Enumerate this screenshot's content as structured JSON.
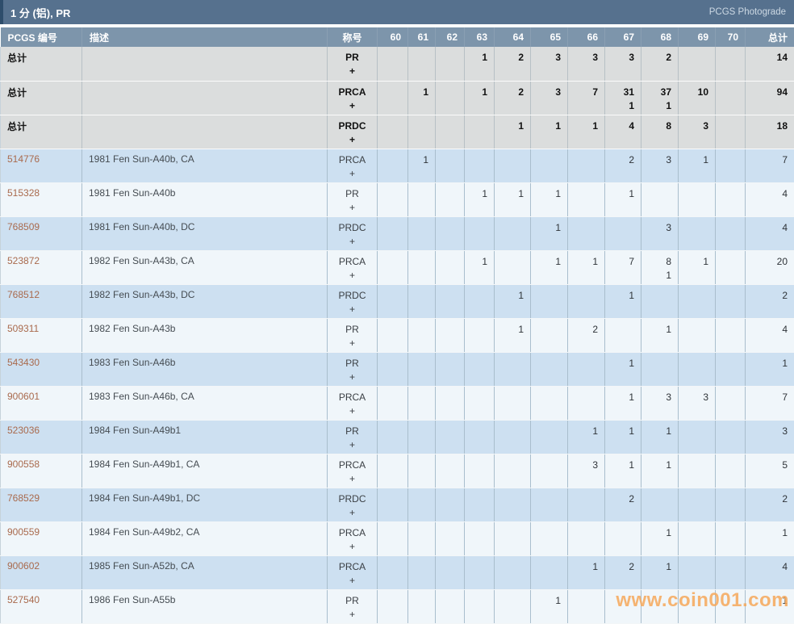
{
  "titlebar": {
    "title": "1 分 (铝), PR",
    "photograde_link": "PCGS Photograde"
  },
  "table": {
    "headers": {
      "pcgs": "PCGS 编号",
      "desc": "描述",
      "designation": "称号",
      "grades": [
        "60",
        "61",
        "62",
        "63",
        "64",
        "65",
        "66",
        "67",
        "68",
        "69",
        "70"
      ],
      "total": "总计"
    },
    "summary_label": "总计",
    "plus_symbol": "+",
    "summary_rows": [
      {
        "designation": "PR",
        "counts": [
          "",
          "",
          "",
          "1",
          "2",
          "3",
          "3",
          "3",
          "2",
          "",
          ""
        ],
        "plus_counts": [
          "",
          "",
          "",
          "",
          "",
          "",
          "",
          "",
          "",
          "",
          ""
        ],
        "total": "14",
        "plus_total": ""
      },
      {
        "designation": "PRCA",
        "counts": [
          "",
          "1",
          "",
          "1",
          "2",
          "3",
          "7",
          "31",
          "37",
          "10",
          ""
        ],
        "plus_counts": [
          "",
          "",
          "",
          "",
          "",
          "",
          "",
          "1",
          "1",
          "",
          ""
        ],
        "total": "94",
        "plus_total": ""
      },
      {
        "designation": "PRDC",
        "counts": [
          "",
          "",
          "",
          "",
          "1",
          "1",
          "1",
          "4",
          "8",
          "3",
          ""
        ],
        "plus_counts": [
          "",
          "",
          "",
          "",
          "",
          "",
          "",
          "",
          "",
          "",
          ""
        ],
        "total": "18",
        "plus_total": ""
      }
    ],
    "coin_rows": [
      {
        "pcgs_no": "514776",
        "desc": "1981 Fen Sun-A40b, CA",
        "designation": "PRCA",
        "counts": [
          "",
          "1",
          "",
          "",
          "",
          "",
          "",
          "2",
          "3",
          "1",
          ""
        ],
        "plus_counts": [
          "",
          "",
          "",
          "",
          "",
          "",
          "",
          "",
          "",
          "",
          ""
        ],
        "total": "7",
        "plus_total": ""
      },
      {
        "pcgs_no": "515328",
        "desc": "1981 Fen Sun-A40b",
        "designation": "PR",
        "counts": [
          "",
          "",
          "",
          "1",
          "1",
          "1",
          "",
          "1",
          "",
          "",
          ""
        ],
        "plus_counts": [
          "",
          "",
          "",
          "",
          "",
          "",
          "",
          "",
          "",
          "",
          ""
        ],
        "total": "4",
        "plus_total": ""
      },
      {
        "pcgs_no": "768509",
        "desc": "1981 Fen Sun-A40b, DC",
        "designation": "PRDC",
        "counts": [
          "",
          "",
          "",
          "",
          "",
          "1",
          "",
          "",
          "3",
          "",
          ""
        ],
        "plus_counts": [
          "",
          "",
          "",
          "",
          "",
          "",
          "",
          "",
          "",
          "",
          ""
        ],
        "total": "4",
        "plus_total": ""
      },
      {
        "pcgs_no": "523872",
        "desc": "1982 Fen Sun-A43b, CA",
        "designation": "PRCA",
        "counts": [
          "",
          "",
          "",
          "1",
          "",
          "1",
          "1",
          "7",
          "8",
          "1",
          ""
        ],
        "plus_counts": [
          "",
          "",
          "",
          "",
          "",
          "",
          "",
          "",
          "1",
          "",
          ""
        ],
        "total": "20",
        "plus_total": ""
      },
      {
        "pcgs_no": "768512",
        "desc": "1982 Fen Sun-A43b, DC",
        "designation": "PRDC",
        "counts": [
          "",
          "",
          "",
          "",
          "1",
          "",
          "",
          "1",
          "",
          "",
          ""
        ],
        "plus_counts": [
          "",
          "",
          "",
          "",
          "",
          "",
          "",
          "",
          "",
          "",
          ""
        ],
        "total": "2",
        "plus_total": ""
      },
      {
        "pcgs_no": "509311",
        "desc": "1982 Fen Sun-A43b",
        "designation": "PR",
        "counts": [
          "",
          "",
          "",
          "",
          "1",
          "",
          "2",
          "",
          "1",
          "",
          ""
        ],
        "plus_counts": [
          "",
          "",
          "",
          "",
          "",
          "",
          "",
          "",
          "",
          "",
          ""
        ],
        "total": "4",
        "plus_total": ""
      },
      {
        "pcgs_no": "543430",
        "desc": "1983 Fen Sun-A46b",
        "designation": "PR",
        "counts": [
          "",
          "",
          "",
          "",
          "",
          "",
          "",
          "1",
          "",
          "",
          ""
        ],
        "plus_counts": [
          "",
          "",
          "",
          "",
          "",
          "",
          "",
          "",
          "",
          "",
          ""
        ],
        "total": "1",
        "plus_total": ""
      },
      {
        "pcgs_no": "900601",
        "desc": "1983 Fen Sun-A46b, CA",
        "designation": "PRCA",
        "counts": [
          "",
          "",
          "",
          "",
          "",
          "",
          "",
          "1",
          "3",
          "3",
          ""
        ],
        "plus_counts": [
          "",
          "",
          "",
          "",
          "",
          "",
          "",
          "",
          "",
          "",
          ""
        ],
        "total": "7",
        "plus_total": ""
      },
      {
        "pcgs_no": "523036",
        "desc": "1984 Fen Sun-A49b1",
        "designation": "PR",
        "counts": [
          "",
          "",
          "",
          "",
          "",
          "",
          "1",
          "1",
          "1",
          "",
          ""
        ],
        "plus_counts": [
          "",
          "",
          "",
          "",
          "",
          "",
          "",
          "",
          "",
          "",
          ""
        ],
        "total": "3",
        "plus_total": ""
      },
      {
        "pcgs_no": "900558",
        "desc": "1984 Fen Sun-A49b1, CA",
        "designation": "PRCA",
        "counts": [
          "",
          "",
          "",
          "",
          "",
          "",
          "3",
          "1",
          "1",
          "",
          ""
        ],
        "plus_counts": [
          "",
          "",
          "",
          "",
          "",
          "",
          "",
          "",
          "",
          "",
          ""
        ],
        "total": "5",
        "plus_total": ""
      },
      {
        "pcgs_no": "768529",
        "desc": "1984 Fen Sun-A49b1, DC",
        "designation": "PRDC",
        "counts": [
          "",
          "",
          "",
          "",
          "",
          "",
          "",
          "2",
          "",
          "",
          ""
        ],
        "plus_counts": [
          "",
          "",
          "",
          "",
          "",
          "",
          "",
          "",
          "",
          "",
          ""
        ],
        "total": "2",
        "plus_total": ""
      },
      {
        "pcgs_no": "900559",
        "desc": "1984 Fen Sun-A49b2, CA",
        "designation": "PRCA",
        "counts": [
          "",
          "",
          "",
          "",
          "",
          "",
          "",
          "",
          "1",
          "",
          ""
        ],
        "plus_counts": [
          "",
          "",
          "",
          "",
          "",
          "",
          "",
          "",
          "",
          "",
          ""
        ],
        "total": "1",
        "plus_total": ""
      },
      {
        "pcgs_no": "900602",
        "desc": "1985 Fen Sun-A52b, CA",
        "designation": "PRCA",
        "counts": [
          "",
          "",
          "",
          "",
          "",
          "",
          "1",
          "2",
          "1",
          "",
          ""
        ],
        "plus_counts": [
          "",
          "",
          "",
          "",
          "",
          "",
          "",
          "",
          "",
          "",
          ""
        ],
        "total": "4",
        "plus_total": ""
      },
      {
        "pcgs_no": "527540",
        "desc": "1986 Fen Sun-A55b",
        "designation": "PR",
        "counts": [
          "",
          "",
          "",
          "",
          "",
          "1",
          "",
          "",
          "",
          "",
          ""
        ],
        "plus_counts": [
          "",
          "",
          "",
          "",
          "",
          "",
          "",
          "",
          "",
          "",
          ""
        ],
        "total": "1",
        "plus_total": ""
      }
    ]
  },
  "watermark": "www.coin001.com",
  "colors": {
    "titlebar_bg": "#56718e",
    "titlebar_accent": "#2e4d6b",
    "header_bg": "#7d95ab",
    "summary_row_bg": "#dbdddd",
    "row_blue": "#cde0f1",
    "row_light": "#f0f6fa",
    "link": "#a96a4d",
    "watermark": "#f6a85a"
  }
}
